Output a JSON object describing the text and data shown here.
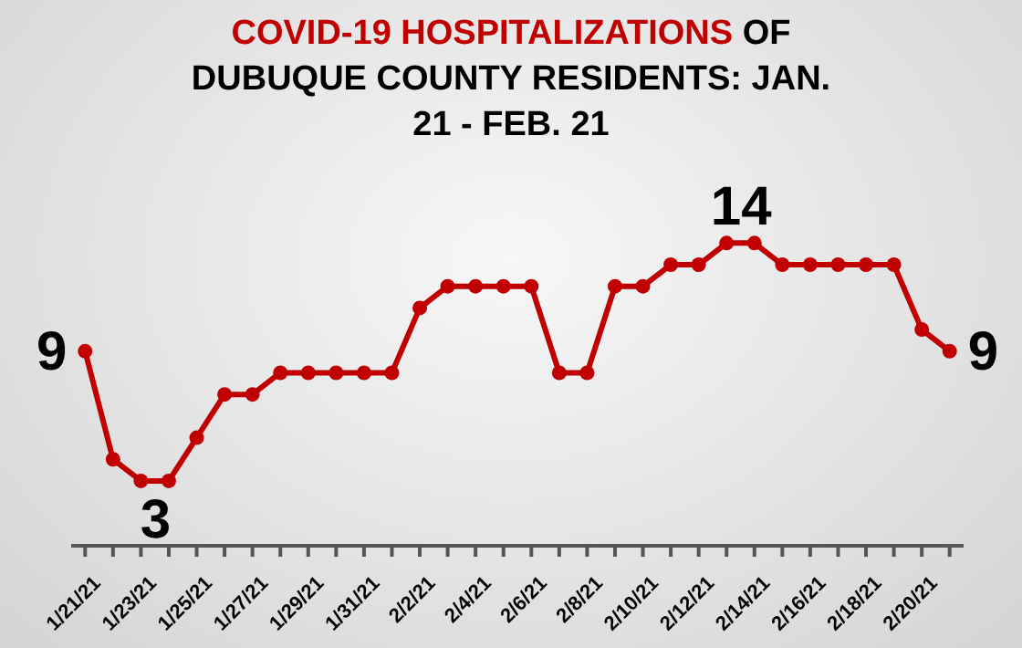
{
  "chart_data": {
    "type": "line",
    "title": "COVID-19 HOSPITALIZATIONS OF DUBUQUE COUNTY RESIDENTS: JAN. 21 - FEB. 21",
    "categories": [
      "1/21/21",
      null,
      "1/23/21",
      null,
      "1/25/21",
      null,
      "1/27/21",
      null,
      "1/29/21",
      null,
      "1/31/21",
      null,
      "2/2/21",
      null,
      "2/4/21",
      null,
      "2/6/21",
      null,
      "2/8/21",
      null,
      "2/10/21",
      null,
      "2/12/21",
      null,
      "2/14/21",
      null,
      "2/16/21",
      null,
      "2/18/21",
      null,
      "2/20/21",
      null
    ],
    "series": [
      {
        "color": "#c00000",
        "values": [
          9,
          4,
          3,
          3,
          5,
          7,
          7,
          8,
          8,
          8,
          8,
          8,
          11,
          12,
          12,
          12,
          12,
          8,
          8,
          12,
          12,
          13,
          13,
          14,
          14,
          13,
          13,
          13,
          13,
          13,
          10,
          9
        ],
        "value_labels": [
          "9",
          null,
          "3",
          null,
          null,
          null,
          null,
          null,
          null,
          null,
          null,
          null,
          null,
          null,
          null,
          null,
          null,
          null,
          null,
          null,
          null,
          null,
          null,
          "14",
          null,
          null,
          null,
          null,
          null,
          null,
          null,
          "9"
        ]
      }
    ],
    "marker": "circle",
    "line_style": "solid",
    "grid": false,
    "legend": false,
    "tick_labels": "x"
  }
}
